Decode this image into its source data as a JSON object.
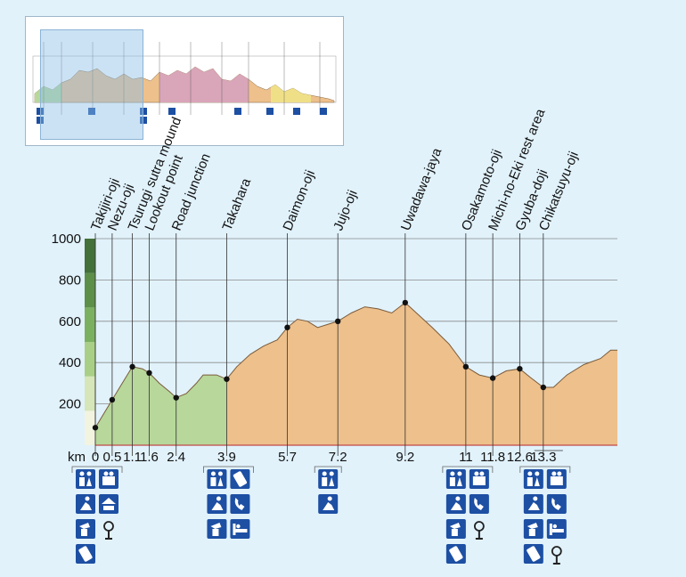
{
  "chart_data": {
    "type": "area",
    "unit_label": "km",
    "ylim": [
      0,
      1000
    ],
    "y_ticks": [
      200,
      400,
      600,
      800,
      1000
    ],
    "x_range_km": [
      0,
      15.5
    ],
    "grid": true,
    "colors": {
      "section_1": "#b7d79b",
      "section_2": "#edc08c",
      "line": "#7a5a3a",
      "marker": "#111111",
      "scale_bar": [
        "#f2f4e0",
        "#d6e6b8",
        "#a9cf86",
        "#7cb061",
        "#5e8f48",
        "#44703a"
      ],
      "amenity_icon": "#1d4fa3"
    },
    "profile": [
      [
        0.0,
        85
      ],
      [
        0.5,
        220
      ],
      [
        0.8,
        300
      ],
      [
        1.1,
        380
      ],
      [
        1.4,
        370
      ],
      [
        1.6,
        350
      ],
      [
        1.9,
        300
      ],
      [
        2.2,
        260
      ],
      [
        2.4,
        230
      ],
      [
        2.7,
        250
      ],
      [
        3.0,
        300
      ],
      [
        3.2,
        340
      ],
      [
        3.6,
        340
      ],
      [
        3.9,
        320
      ],
      [
        4.2,
        380
      ],
      [
        4.6,
        440
      ],
      [
        5.0,
        480
      ],
      [
        5.4,
        510
      ],
      [
        5.7,
        570
      ],
      [
        6.0,
        610
      ],
      [
        6.3,
        600
      ],
      [
        6.6,
        570
      ],
      [
        7.0,
        590
      ],
      [
        7.2,
        600
      ],
      [
        7.6,
        640
      ],
      [
        8.0,
        670
      ],
      [
        8.4,
        660
      ],
      [
        8.8,
        640
      ],
      [
        9.2,
        690
      ],
      [
        9.6,
        630
      ],
      [
        10.0,
        570
      ],
      [
        10.5,
        490
      ],
      [
        11.0,
        380
      ],
      [
        11.4,
        340
      ],
      [
        11.8,
        325
      ],
      [
        12.2,
        360
      ],
      [
        12.6,
        370
      ],
      [
        12.9,
        330
      ],
      [
        13.3,
        280
      ],
      [
        13.6,
        280
      ],
      [
        14.0,
        340
      ],
      [
        14.5,
        390
      ],
      [
        15.0,
        420
      ],
      [
        15.3,
        460
      ],
      [
        15.5,
        460
      ]
    ],
    "sections": [
      {
        "from_km": 0,
        "to_km": 3.9,
        "color_key": "section_1"
      },
      {
        "from_km": 3.9,
        "to_km": 15.5,
        "color_key": "section_2"
      }
    ],
    "waypoints": [
      {
        "name": "Takijiri-oji",
        "km": 0.0,
        "elev": 85
      },
      {
        "name": "Nezu-oji",
        "km": 0.5,
        "elev": 220
      },
      {
        "name": "Tsurugi sutra mound",
        "km": 1.1,
        "elev": 380
      },
      {
        "name": "Lookout point",
        "km": 1.6,
        "elev": 350
      },
      {
        "name": "Road junction",
        "km": 2.4,
        "elev": 230
      },
      {
        "name": "Takahara",
        "km": 3.9,
        "elev": 320
      },
      {
        "name": "Daimon-oji",
        "km": 5.7,
        "elev": 570
      },
      {
        "name": "Jujo-oji",
        "km": 7.2,
        "elev": 600
      },
      {
        "name": "Uwadawa-jaya",
        "km": 9.2,
        "elev": 690
      },
      {
        "name": "Osakamoto-oji",
        "km": 11.0,
        "elev": 380
      },
      {
        "name": "Michi-no-Eki rest area",
        "km": 11.8,
        "elev": 325
      },
      {
        "name": "Gyuba-doji",
        "km": 12.6,
        "elev": 370
      },
      {
        "name": "Chikatsuyu-oji",
        "km": 13.3,
        "elev": 280
      }
    ],
    "x_labels": [
      {
        "text": "0",
        "km": 0.0
      },
      {
        "text": "0.5",
        "km": 0.5
      },
      {
        "text": "1.1",
        "km": 1.1
      },
      {
        "text": "1.6",
        "km": 1.6
      },
      {
        "text": "2.4",
        "km": 2.4
      },
      {
        "text": "3.9",
        "km": 3.9
      },
      {
        "text": "5.7",
        "km": 5.7
      },
      {
        "text": "7.2",
        "km": 7.2
      },
      {
        "text": "9.2",
        "km": 9.2
      },
      {
        "text": "11",
        "km": 11.0
      },
      {
        "text": "11.8",
        "km": 11.8
      },
      {
        "text": "12.6",
        "km": 12.6
      },
      {
        "text": "13.3",
        "km": 13.3
      }
    ],
    "amenity_groups": [
      {
        "from_km": 0.0,
        "to_km": 0.5,
        "icons": [
          [
            "toilet",
            "shop"
          ],
          [
            "rest",
            "shelter"
          ],
          [
            "water",
            "info-point"
          ],
          [
            "phone-card"
          ]
        ]
      },
      {
        "from_km": 3.9,
        "to_km": 4.2,
        "icons": [
          [
            "toilet",
            "phone-card"
          ],
          [
            "rest",
            "phone"
          ],
          [
            "water",
            "lodging"
          ]
        ]
      },
      {
        "from_km": 7.2,
        "to_km": 7.2,
        "icons": [
          [
            "toilet"
          ],
          [
            "rest"
          ]
        ]
      },
      {
        "from_km": 11.0,
        "to_km": 11.4,
        "icons": [
          [
            "toilet",
            "shop"
          ],
          [
            "rest",
            "phone"
          ],
          [
            "water",
            "info-point"
          ],
          [
            "phone-card"
          ]
        ]
      },
      {
        "from_km": 13.3,
        "to_km": 13.7,
        "icons": [
          [
            "toilet",
            "shop"
          ],
          [
            "rest",
            "phone"
          ],
          [
            "water",
            "lodging"
          ],
          [
            "phone-card",
            "info-point"
          ]
        ]
      }
    ]
  }
}
